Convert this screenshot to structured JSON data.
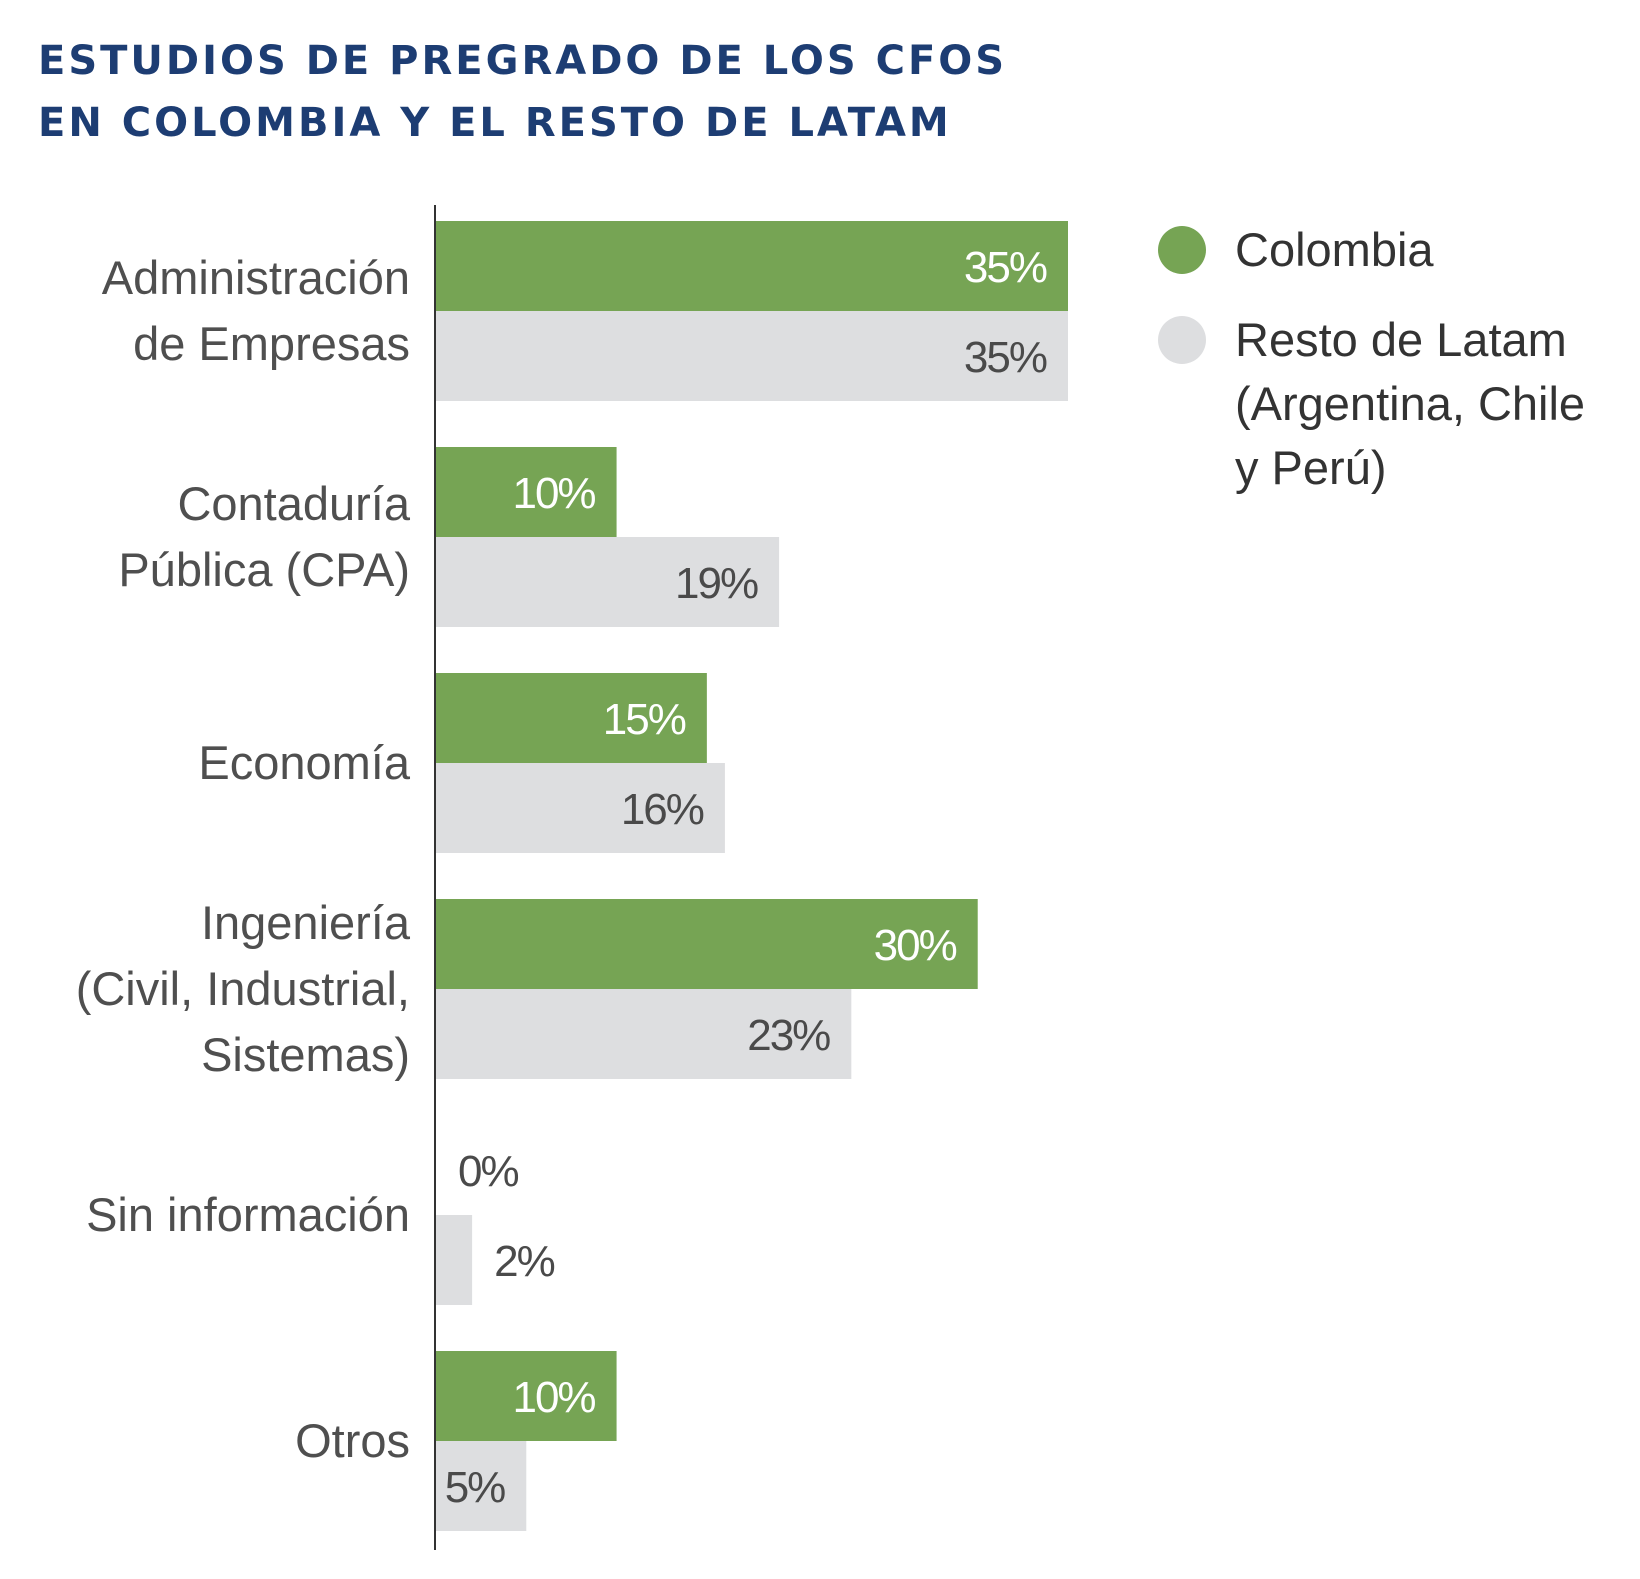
{
  "title_lines": [
    "ESTUDIOS DE PREGRADO DE LOS CFOS",
    "EN COLOMBIA Y EL RESTO DE LATAM"
  ],
  "colors": {
    "colombia": "#76a454",
    "resto": "#dddee0",
    "title": "#1d3d73"
  },
  "chart_data": {
    "type": "bar",
    "orientation": "horizontal",
    "title": "ESTUDIOS DE PREGRADO DE LOS CFOS EN COLOMBIA Y EL RESTO DE LATAM",
    "categories": [
      [
        "Administración",
        "de Empresas"
      ],
      [
        "Contaduría",
        "Pública (CPA)"
      ],
      [
        "Economía"
      ],
      [
        "Ingeniería",
        "(Civil, Industrial,",
        "Sistemas)"
      ],
      [
        "Sin información"
      ],
      [
        "Otros"
      ]
    ],
    "series": [
      {
        "name": "Colombia",
        "values": [
          35,
          10,
          15,
          30,
          0,
          10
        ],
        "labels": [
          "35%",
          "10%",
          "15%",
          "30%",
          "0%",
          "10%"
        ]
      },
      {
        "name": "Resto de Latam (Argentina, Chile y Perú)",
        "values": [
          35,
          19,
          16,
          23,
          2,
          5
        ],
        "labels": [
          "35%",
          "19%",
          "16%",
          "23%",
          "2%",
          "5%"
        ]
      }
    ],
    "legend": {
      "placement": "top-right",
      "entries": [
        [
          "Colombia"
        ],
        [
          "Resto de Latam",
          "(Argentina, Chile",
          "y Perú)"
        ]
      ]
    },
    "xlim": [
      0,
      35
    ],
    "grid": false
  }
}
